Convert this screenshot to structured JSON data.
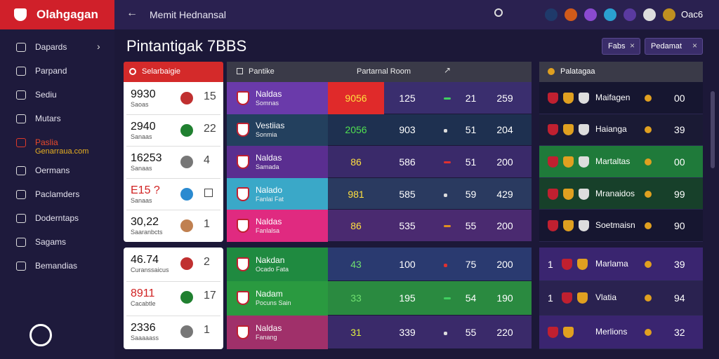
{
  "app": {
    "logo": "Olahgagan",
    "breadcrumb": "Memit Hednansal",
    "user": "Oac6"
  },
  "sidebar": {
    "items": [
      {
        "label": "Dapards"
      },
      {
        "label": "Parpand"
      },
      {
        "label": "Sediu"
      },
      {
        "label": "Mutars"
      },
      {
        "label": "Paslia",
        "sub": "Genarraua.com"
      },
      {
        "label": "Oermans"
      },
      {
        "label": "Paclamders"
      },
      {
        "label": "Doderntaps"
      },
      {
        "label": "Sagams"
      },
      {
        "label": "Bemandias"
      }
    ]
  },
  "page": {
    "title": "Pintantigak 7BBS",
    "filters": [
      "Fabs",
      "Pedamat"
    ]
  },
  "left_panel": {
    "title": "Selarbaigie",
    "groups": [
      [
        {
          "value": "9930",
          "caption": "Saoas",
          "rank": "15"
        },
        {
          "value": "2940",
          "caption": "Sanaas",
          "rank": "22"
        },
        {
          "value": "16253",
          "caption": "Sanaas",
          "rank": "4"
        },
        {
          "value": "E15 ?",
          "caption": "Sanaas"
        },
        {
          "value": "30,22",
          "caption": "Saaranbcts",
          "rank": "1"
        }
      ],
      [
        {
          "value": "46.74",
          "caption": "Curanssaicus",
          "rank": "2"
        },
        {
          "value": "8911",
          "caption": "Cacabtle",
          "rank": "17"
        },
        {
          "value": "2336",
          "caption": "Saaaaass",
          "rank": "1"
        }
      ]
    ]
  },
  "table": {
    "columns": [
      "Pantike",
      "Partarnal Room"
    ],
    "groups": [
      [
        {
          "name": "Naldas",
          "sub": "Somnas",
          "score": "9056",
          "c1": "125",
          "c2": "21",
          "c3": "259"
        },
        {
          "name": "Vestiias",
          "sub": "Sonmia",
          "score": "2056",
          "c1": "903",
          "c2": "51",
          "c3": "204"
        },
        {
          "name": "Naldas",
          "sub": "Samada",
          "score": "86",
          "c1": "586",
          "c2": "51",
          "c3": "200"
        },
        {
          "name": "Nalado",
          "sub": "Fanlai Fat",
          "score": "981",
          "c1": "585",
          "c2": "59",
          "c3": "429"
        },
        {
          "name": "Naldas",
          "sub": "Fanlalsa",
          "score": "86",
          "c1": "535",
          "c2": "55",
          "c3": "200"
        }
      ],
      [
        {
          "name": "Nakdan",
          "sub": "Ocado Fata",
          "score": "43",
          "c1": "100",
          "c2": "75",
          "c3": "200"
        },
        {
          "name": "Nadam",
          "sub": "Pocuns Sain",
          "score": "33",
          "c1": "195",
          "c2": "54",
          "c3": "190"
        },
        {
          "name": "Naldas",
          "sub": "Fanang",
          "score": "31",
          "c1": "339",
          "c2": "55",
          "c3": "220"
        }
      ]
    ]
  },
  "right_panel": {
    "title": "Palatagaa",
    "groups": [
      [
        {
          "name": "Maifagen",
          "value": "00"
        },
        {
          "name": "Haianga",
          "value": "39"
        },
        {
          "name": "Martaltas",
          "value": "00"
        },
        {
          "name": "Mranaidos",
          "value": "99"
        },
        {
          "name": "Soetmaisn",
          "value": "90"
        }
      ],
      [
        {
          "rank": "1",
          "name": "Marlama",
          "value": "39"
        },
        {
          "rank": "1",
          "name": "Vlatia",
          "value": "94"
        },
        {
          "name": "Merlions",
          "value": "32"
        }
      ]
    ]
  }
}
